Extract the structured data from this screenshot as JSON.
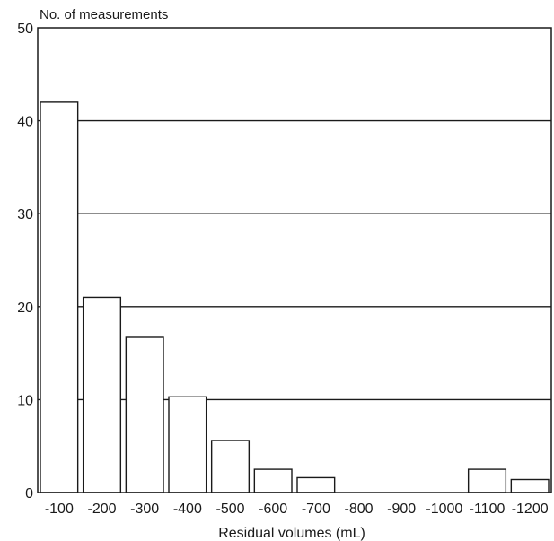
{
  "chart_data": {
    "type": "bar",
    "title": "",
    "ylabel": "No. of measurements",
    "xlabel": "Residual volumes (mL)",
    "ylim": [
      0,
      50
    ],
    "yticks": [
      "0",
      "10",
      "20",
      "30",
      "40",
      "50"
    ],
    "grid": "horizontal",
    "categories": [
      "-100",
      "-200",
      "-300",
      "-400",
      "-500",
      "-600",
      "-700",
      "-800",
      "-900",
      "-1000",
      "-1100",
      "-1200"
    ],
    "values": [
      42,
      21,
      16.7,
      10.3,
      5.6,
      2.5,
      1.6,
      0,
      0,
      0,
      2.5,
      1.4
    ]
  }
}
